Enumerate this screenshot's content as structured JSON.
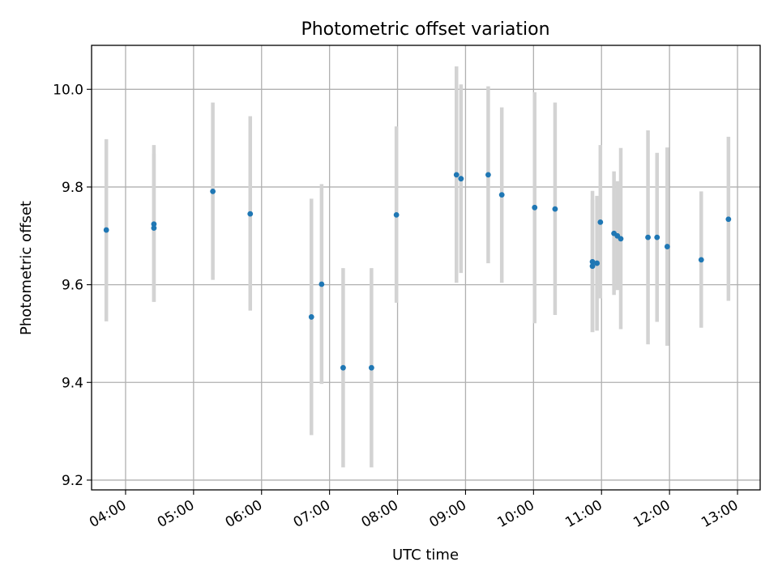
{
  "chart_data": {
    "type": "scatter",
    "title": "Photometric offset variation",
    "xlabel": "UTC time",
    "ylabel": "Photometric offset",
    "x_ticks": [
      "04:00",
      "05:00",
      "06:00",
      "07:00",
      "08:00",
      "09:00",
      "10:00",
      "11:00",
      "12:00",
      "13:00"
    ],
    "y_ticks": [
      "9.2",
      "9.4",
      "9.6",
      "9.8",
      "10.0"
    ],
    "xlim": [
      "03:30",
      "13:20"
    ],
    "ylim": [
      9.18,
      10.09
    ],
    "grid": true,
    "marker_color": "#1f77b4",
    "errorbar_color": "#d3d3d3",
    "points": [
      {
        "x": "03:43",
        "y": 9.712,
        "ylo": 9.525,
        "yhi": 9.898
      },
      {
        "x": "04:25",
        "y": 9.724,
        "ylo": 9.565,
        "yhi": 9.886
      },
      {
        "x": "04:25",
        "y": 9.716,
        "ylo": 9.565,
        "yhi": 9.868
      },
      {
        "x": "05:17",
        "y": 9.791,
        "ylo": 9.61,
        "yhi": 9.973
      },
      {
        "x": "05:50",
        "y": 9.745,
        "ylo": 9.547,
        "yhi": 9.945
      },
      {
        "x": "06:44",
        "y": 9.534,
        "ylo": 9.292,
        "yhi": 9.776
      },
      {
        "x": "06:53",
        "y": 9.601,
        "ylo": 9.397,
        "yhi": 9.806
      },
      {
        "x": "07:12",
        "y": 9.43,
        "ylo": 9.226,
        "yhi": 9.634
      },
      {
        "x": "07:37",
        "y": 9.43,
        "ylo": 9.226,
        "yhi": 9.634
      },
      {
        "x": "07:59",
        "y": 9.743,
        "ylo": 9.563,
        "yhi": 9.924
      },
      {
        "x": "08:52",
        "y": 9.825,
        "ylo": 9.604,
        "yhi": 10.047
      },
      {
        "x": "08:56",
        "y": 9.817,
        "ylo": 9.624,
        "yhi": 10.01
      },
      {
        "x": "09:20",
        "y": 9.825,
        "ylo": 9.644,
        "yhi": 10.006
      },
      {
        "x": "09:32",
        "y": 9.784,
        "ylo": 9.604,
        "yhi": 9.963
      },
      {
        "x": "10:01",
        "y": 9.758,
        "ylo": 9.521,
        "yhi": 9.994
      },
      {
        "x": "10:19",
        "y": 9.755,
        "ylo": 9.538,
        "yhi": 9.973
      },
      {
        "x": "10:52",
        "y": 9.647,
        "ylo": 9.503,
        "yhi": 9.792
      },
      {
        "x": "10:52",
        "y": 9.638,
        "ylo": 9.503,
        "yhi": 9.774
      },
      {
        "x": "10:56",
        "y": 9.644,
        "ylo": 9.506,
        "yhi": 9.782
      },
      {
        "x": "10:59",
        "y": 9.728,
        "ylo": 9.572,
        "yhi": 9.886
      },
      {
        "x": "11:11",
        "y": 9.705,
        "ylo": 9.579,
        "yhi": 9.832
      },
      {
        "x": "11:14",
        "y": 9.7,
        "ylo": 9.589,
        "yhi": 9.812
      },
      {
        "x": "11:17",
        "y": 9.694,
        "ylo": 9.509,
        "yhi": 9.88
      },
      {
        "x": "11:41",
        "y": 9.697,
        "ylo": 9.478,
        "yhi": 9.916
      },
      {
        "x": "11:49",
        "y": 9.697,
        "ylo": 9.524,
        "yhi": 9.87
      },
      {
        "x": "11:58",
        "y": 9.678,
        "ylo": 9.475,
        "yhi": 9.881
      },
      {
        "x": "12:28",
        "y": 9.651,
        "ylo": 9.512,
        "yhi": 9.791
      },
      {
        "x": "12:52",
        "y": 9.734,
        "ylo": 9.567,
        "yhi": 9.903
      }
    ]
  }
}
